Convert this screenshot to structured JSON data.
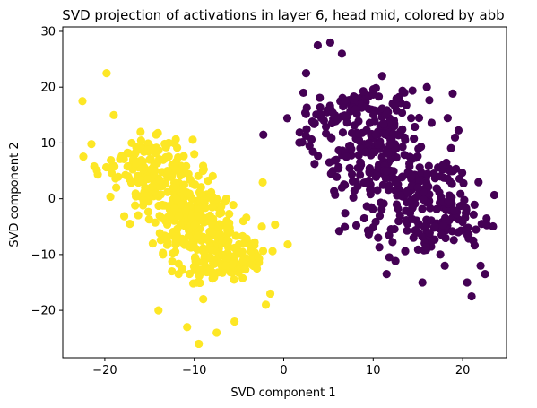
{
  "chart_data": {
    "type": "scatter",
    "title": "SVD projection of activations in layer 6, head mid, colored by abb",
    "xlabel": "SVD component 1",
    "ylabel": "SVD component 2",
    "xlim": [
      -24.7,
      24.9
    ],
    "ylim": [
      -28.5,
      30.8
    ],
    "xticks": [
      -20,
      -10,
      0,
      10,
      20
    ],
    "yticks": [
      -20,
      -10,
      0,
      10,
      20,
      30
    ],
    "grid": false,
    "legend": false,
    "clusters": [
      {
        "color": "#fde725",
        "count": 500,
        "anchor_points": [
          [
            -22.5,
            17.5
          ],
          [
            -21.5,
            9.8
          ],
          [
            -19.8,
            22.5
          ],
          [
            -19,
            15
          ],
          [
            -17.2,
            -4.5
          ],
          [
            -17,
            10
          ],
          [
            -15.5,
            2
          ],
          [
            -14,
            -20
          ],
          [
            -13.5,
            -10
          ],
          [
            -13,
            5
          ],
          [
            -12.5,
            -13
          ],
          [
            -11.5,
            -1
          ],
          [
            -10.8,
            -23
          ],
          [
            -10,
            8
          ],
          [
            -9.5,
            -26
          ],
          [
            -9,
            -18
          ],
          [
            -8,
            -6
          ],
          [
            -7.5,
            -24
          ],
          [
            -6.5,
            -12
          ],
          [
            -5.5,
            -22
          ],
          [
            -3,
            -12.5
          ],
          [
            -2,
            -19
          ],
          [
            -1.5,
            -17
          ],
          [
            -16,
            12
          ],
          [
            -12,
            0
          ]
        ]
      },
      {
        "color": "#440154",
        "count": 500,
        "anchor_points": [
          [
            2.5,
            22.5
          ],
          [
            2.2,
            19
          ],
          [
            3.8,
            27.5
          ],
          [
            5.2,
            28
          ],
          [
            6.5,
            26
          ],
          [
            4.5,
            14
          ],
          [
            5.5,
            5
          ],
          [
            6.2,
            -5.8
          ],
          [
            6.5,
            2
          ],
          [
            8,
            16
          ],
          [
            9,
            -3.5
          ],
          [
            9.5,
            10
          ],
          [
            11,
            22
          ],
          [
            11.5,
            5
          ],
          [
            12,
            -5.5
          ],
          [
            11.5,
            -13.5
          ],
          [
            13.5,
            11
          ],
          [
            14.5,
            -7
          ],
          [
            15,
            2
          ],
          [
            15.5,
            -15
          ],
          [
            17.5,
            4
          ],
          [
            18,
            -12
          ],
          [
            19.5,
            -6
          ],
          [
            20.5,
            -15
          ],
          [
            21,
            -17.5
          ],
          [
            22,
            -12
          ],
          [
            22.5,
            -13.5
          ],
          [
            16,
            20
          ],
          [
            13,
            -3
          ],
          [
            17.5,
            -10
          ]
        ]
      }
    ]
  }
}
